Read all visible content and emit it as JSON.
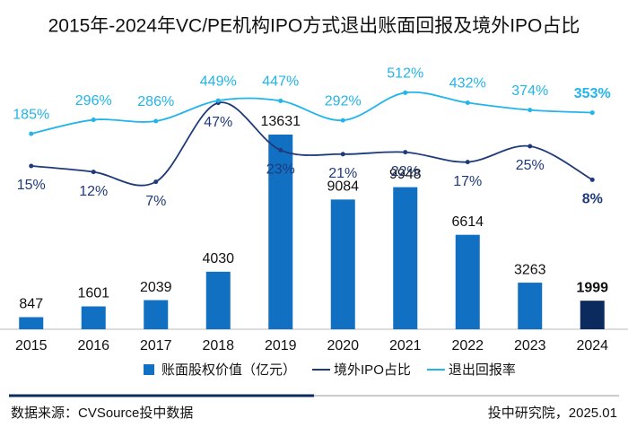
{
  "chart_data": {
    "type": "bar",
    "title": "2015年-2024年VC/PE机构IPO方式退出账面回报及境外IPO占比",
    "categories": [
      "2015",
      "2016",
      "2017",
      "2018",
      "2019",
      "2020",
      "2021",
      "2022",
      "2023",
      "2024"
    ],
    "series": [
      {
        "name": "账面股权价值（亿元）",
        "type": "bar",
        "color": "#1170c2",
        "colors": [
          "#1170c2",
          "#1170c2",
          "#1170c2",
          "#1170c2",
          "#1170c2",
          "#1170c2",
          "#1170c2",
          "#1170c2",
          "#1170c2",
          "#0b2a5e"
        ],
        "values": [
          847,
          1601,
          2039,
          4030,
          13631,
          9084,
          9948,
          6614,
          3263,
          1999
        ]
      },
      {
        "name": "境外IPO占比",
        "type": "line",
        "color": "#1f3a7a",
        "values": [
          15,
          12,
          7,
          47,
          23,
          21,
          22,
          17,
          25,
          8
        ],
        "value_labels": [
          "15%",
          "12%",
          "7%",
          "47%",
          "23%",
          "21%",
          "22%",
          "17%",
          "25%",
          "8%"
        ]
      },
      {
        "name": "退出回报率",
        "type": "line",
        "color": "#22b4ea",
        "values": [
          185,
          296,
          286,
          449,
          447,
          292,
          512,
          432,
          374,
          353
        ],
        "value_labels": [
          "185%",
          "296%",
          "286%",
          "449%",
          "447%",
          "292%",
          "512%",
          "432%",
          "374%",
          "353%"
        ]
      }
    ],
    "source": "数据来源：CVSource投中数据",
    "credit": "投中研究院，2025.01"
  }
}
